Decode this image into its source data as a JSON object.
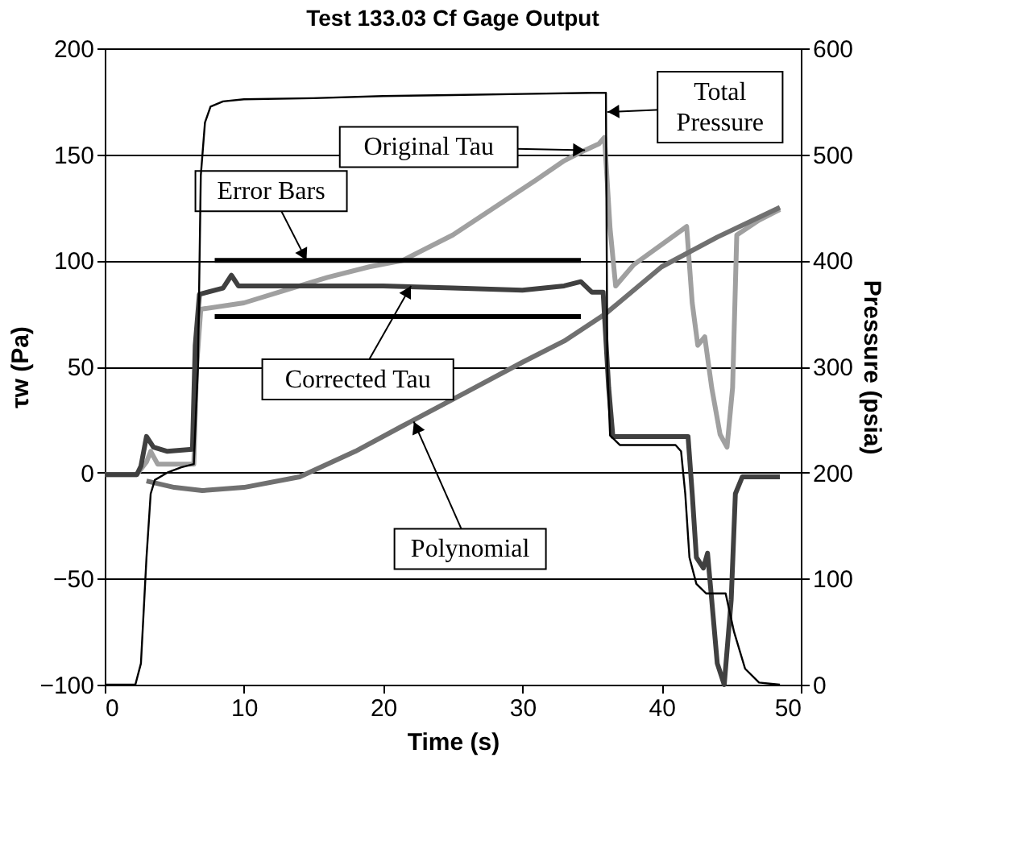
{
  "chart_data": {
    "type": "line",
    "title": "Test 133.03 Cf Gage Output",
    "xlabel": "Time (s)",
    "ylabel": "τw (Pa)",
    "y2label": "Pressure (psia)",
    "xlim": [
      0,
      50
    ],
    "xticks": [
      0,
      10,
      20,
      30,
      40,
      50
    ],
    "ylim": [
      -100,
      200
    ],
    "yticks": [
      -100,
      -50,
      0,
      50,
      100,
      150,
      200
    ],
    "y2lim": [
      0,
      600
    ],
    "y2ticks": [
      0,
      100,
      200,
      300,
      400,
      500,
      600
    ],
    "grid": "y",
    "marker": "none",
    "line_style": "solid",
    "series": [
      {
        "axis": "y2",
        "color": "#000000",
        "x": [
          0,
          2.2,
          2.6,
          3.0,
          3.3,
          3.6,
          4.5,
          5.5,
          6.4,
          6.7,
          6.9,
          7.2,
          7.6,
          8.5,
          10,
          15,
          20,
          25,
          30,
          35,
          36.0,
          36.1,
          36.3,
          37,
          41,
          41.4,
          41.7,
          42.0,
          42.5,
          43.2,
          44.6,
          45.2,
          46,
          47,
          48.5
        ],
        "values": [
          0,
          0,
          20,
          120,
          180,
          193,
          200,
          205,
          208,
          300,
          480,
          530,
          545,
          550,
          552,
          553,
          555,
          556,
          557,
          558,
          558,
          300,
          235,
          226,
          226,
          220,
          180,
          120,
          95,
          86,
          86,
          50,
          15,
          2,
          0
        ]
      },
      {
        "color": "#a0a0a0",
        "x": [
          0,
          2.3,
          3.0,
          3.3,
          3.8,
          6.4,
          6.6,
          6.9,
          10,
          13,
          16,
          19,
          21.4,
          25,
          28,
          31,
          33,
          34.5,
          35.5,
          35.9,
          36.3,
          36.7,
          38,
          41.8,
          42.2,
          42.6,
          43.1,
          43.6,
          44.2,
          44.7,
          45.1,
          45.4,
          47,
          48.5
        ],
        "values": [
          -1,
          -1,
          5,
          10,
          4,
          4,
          50,
          77,
          80,
          86,
          92,
          97,
          100,
          112,
          125,
          138,
          147,
          152,
          155,
          158,
          115,
          88,
          98,
          116,
          80,
          60,
          64,
          40,
          18,
          12,
          40,
          112,
          119,
          124
        ]
      },
      {
        "color": "#707070",
        "x": [
          3,
          5,
          7,
          10,
          14,
          18,
          21.4,
          26,
          30,
          33,
          36,
          40,
          44,
          48.5
        ],
        "values": [
          -4,
          -7,
          -8.5,
          -7,
          -2,
          10,
          22,
          38,
          52,
          62,
          75,
          97,
          111,
          125
        ]
      },
      {
        "type": "line",
        "color": "#000000",
        "x": [
          7.9,
          34.2
        ],
        "values": [
          100,
          100
        ]
      },
      {
        "type": "line",
        "color": "#000000",
        "x": [
          7.9,
          34.2
        ],
        "values": [
          73.5,
          73.5
        ]
      },
      {
        "color": "#404040",
        "x": [
          0,
          2.3,
          2.6,
          3.0,
          3.5,
          4.5,
          6.3,
          6.5,
          6.8,
          8.5,
          9.1,
          9.6,
          15,
          20,
          25,
          30,
          33,
          34.2,
          35,
          35.8,
          36.2,
          36.5,
          41.9,
          42.2,
          42.5,
          43,
          43.3,
          43.6,
          44,
          44.5,
          45,
          45.3,
          45.8,
          48.5
        ],
        "values": [
          -1,
          -1,
          3,
          17,
          12,
          10,
          11,
          60,
          84,
          87,
          93,
          88,
          88,
          88,
          87,
          86,
          88,
          90,
          85,
          85,
          40,
          17,
          17,
          -10,
          -40,
          -45,
          -38,
          -60,
          -90,
          -100,
          -60,
          -10,
          -2,
          -2
        ]
      }
    ],
    "annotations": [
      {
        "text": "Total\nPressure",
        "x": 36.1,
        "y": 170
      },
      {
        "text": "Original Tau",
        "x": 34.5,
        "y": 152
      },
      {
        "text": "Error Bars",
        "x": 14.5,
        "y": 100
      },
      {
        "text": "Corrected Tau",
        "x": 22,
        "y": 88
      },
      {
        "text": "Polynomial",
        "x": 22.2,
        "y": 24
      }
    ]
  }
}
